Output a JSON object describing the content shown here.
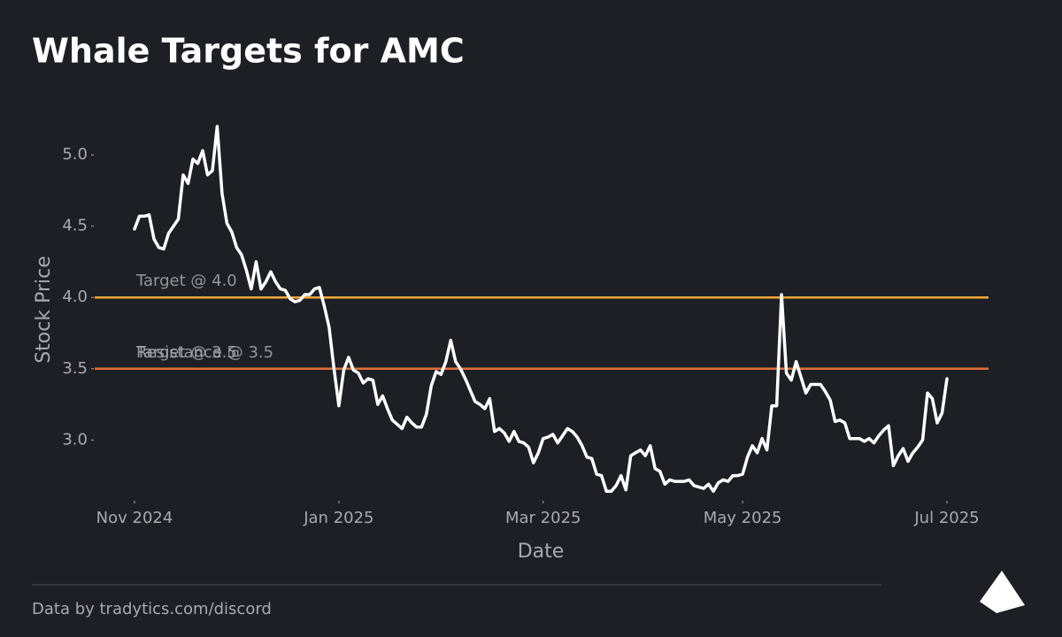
{
  "chart_data": {
    "type": "line",
    "title": "Whale Targets for AMC",
    "xlabel": "Date",
    "ylabel": "Stock Price",
    "footer": "Data by tradytics.com/discord",
    "categories": [
      "Nov 2024",
      null,
      null,
      null,
      null,
      null,
      null,
      null,
      null,
      null,
      null,
      null,
      null,
      null,
      null,
      null,
      null,
      null,
      null,
      null,
      null,
      null,
      null,
      null,
      null,
      null,
      null,
      null,
      null,
      null,
      null,
      null,
      null,
      null,
      null,
      null,
      null,
      null,
      null,
      null,
      null,
      null,
      "Jan 2025",
      null,
      null,
      null,
      null,
      null,
      null,
      null,
      null,
      null,
      null,
      null,
      null,
      null,
      null,
      null,
      null,
      null,
      null,
      null,
      null,
      null,
      null,
      null,
      null,
      null,
      null,
      null,
      null,
      null,
      null,
      null,
      null,
      null,
      null,
      null,
      null,
      null,
      null,
      null,
      null,
      null,
      "Mar 2025",
      null,
      null,
      null,
      null,
      null,
      null,
      null,
      null,
      null,
      null,
      null,
      null,
      null,
      null,
      null,
      null,
      null,
      null,
      null,
      null,
      null,
      null,
      null,
      null,
      null,
      null,
      null,
      null,
      null,
      null,
      null,
      null,
      null,
      null,
      null,
      null,
      null,
      null,
      null,
      null,
      "May 2025",
      null,
      null,
      null,
      null,
      null,
      null,
      null,
      null,
      null,
      null,
      null,
      null,
      null,
      null,
      null,
      null,
      null,
      null,
      null,
      null,
      null,
      null,
      null,
      null,
      null,
      null,
      null,
      null,
      null,
      null,
      null,
      null,
      null,
      null,
      null,
      null,
      null,
      null,
      null,
      null,
      null,
      "Jul 2025"
    ],
    "series": [
      {
        "name": "Stock Price",
        "color": "#ffffff",
        "values": [
          4.48,
          4.57,
          4.57,
          4.58,
          4.41,
          4.35,
          4.34,
          4.45,
          4.5,
          4.55,
          4.86,
          4.8,
          4.97,
          4.94,
          5.03,
          4.86,
          4.89,
          5.2,
          4.73,
          4.52,
          4.46,
          4.35,
          4.3,
          4.19,
          4.06,
          4.25,
          4.06,
          4.11,
          4.18,
          4.11,
          4.06,
          4.05,
          3.99,
          3.97,
          3.98,
          4.02,
          4.02,
          4.06,
          4.07,
          3.94,
          3.79,
          3.5,
          3.24,
          3.49,
          3.58,
          3.49,
          3.47,
          3.4,
          3.43,
          3.42,
          3.25,
          3.31,
          3.22,
          3.14,
          3.11,
          3.08,
          3.16,
          3.12,
          3.09,
          3.09,
          3.18,
          3.38,
          3.48,
          3.46,
          3.55,
          3.7,
          3.55,
          3.5,
          3.43,
          3.35,
          3.27,
          3.25,
          3.22,
          3.29,
          3.06,
          3.08,
          3.05,
          2.99,
          3.06,
          2.99,
          2.98,
          2.95,
          2.84,
          2.91,
          3.01,
          3.02,
          3.04,
          2.98,
          3.03,
          3.08,
          3.06,
          3.02,
          2.96,
          2.88,
          2.87,
          2.76,
          2.75,
          2.64,
          2.64,
          2.68,
          2.75,
          2.65,
          2.89,
          2.91,
          2.93,
          2.89,
          2.96,
          2.8,
          2.78,
          2.69,
          2.72,
          2.71,
          2.71,
          2.71,
          2.72,
          2.68,
          2.67,
          2.66,
          2.69,
          2.64,
          2.7,
          2.72,
          2.71,
          2.75,
          2.75,
          2.76,
          2.88,
          2.96,
          2.91,
          3.01,
          2.93,
          3.24,
          3.24,
          4.02,
          3.47,
          3.42,
          3.55,
          3.44,
          3.33,
          3.39,
          3.39,
          3.39,
          3.34,
          3.28,
          3.13,
          3.14,
          3.12,
          3.01,
          3.01,
          3.01,
          2.99,
          3.01,
          2.98,
          3.03,
          3.07,
          3.1,
          2.82,
          2.89,
          2.94,
          2.85,
          2.91,
          2.95,
          3.0,
          3.33,
          3.29,
          3.12,
          3.19,
          3.43
        ]
      }
    ],
    "hlines": [
      {
        "value": 4.0,
        "label": "Target @ 4.0",
        "color": "#f5a93a"
      },
      {
        "value": 3.5,
        "label": "Target @ 3.5",
        "color": "#e2703a"
      },
      {
        "value": 3.5,
        "label": "Resistance @ 3.5",
        "color": "#e2703a"
      }
    ],
    "ylim": [
      2.58,
      5.28
    ],
    "yticks": [
      {
        "value": 3,
        "label": "3.0"
      },
      {
        "value": 3.5,
        "label": "3.5"
      },
      {
        "value": 4,
        "label": "4.0"
      },
      {
        "value": 4.5,
        "label": "4.5"
      },
      {
        "value": 5,
        "label": "5.0"
      }
    ],
    "grid": false
  }
}
